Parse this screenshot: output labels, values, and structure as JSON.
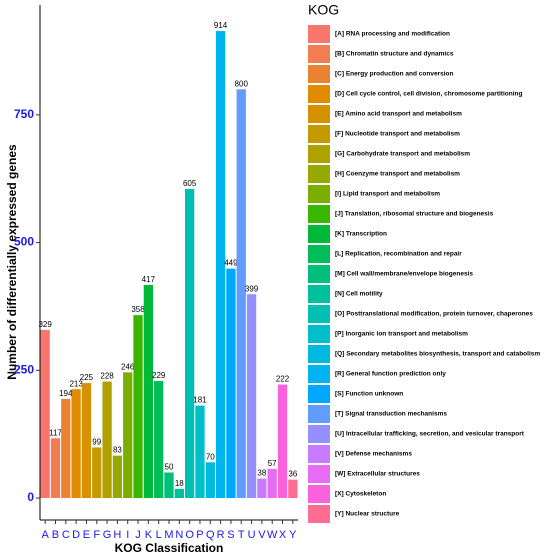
{
  "chart_data": {
    "type": "bar",
    "x_label": "KOG Classification",
    "y_label": "Number of differentially expressed genes",
    "legend_title": "KOG",
    "categories": [
      "A",
      "B",
      "C",
      "D",
      "E",
      "F",
      "G",
      "H",
      "I",
      "J",
      "K",
      "L",
      "M",
      "N",
      "O",
      "P",
      "Q",
      "R",
      "S",
      "T",
      "U",
      "V",
      "W",
      "X",
      "Y"
    ],
    "legend_labels": [
      "[A] RNA processing and modification",
      "[B] Chromatin structure and dynamics",
      "[C] Energy production and conversion",
      "[D] Cell cycle control, cell division, chromosome partitioning",
      "[E] Amino acid transport and metabolism",
      "[F] Nucleotide transport and metabolism",
      "[G] Carbohydrate transport and metabolism",
      "[H] Coenzyme transport and metabolism",
      "[I] Lipid transport and metabolism",
      "[J] Translation, ribosomal structure and biogenesis",
      "[K] Transcription",
      "[L] Replication, recombination and repair",
      "[M] Cell wall/membrane/envelope biogenesis",
      "[N] Cell motility",
      "[O] Posttranslational modification, protein turnover, chaperones",
      "[P] Inorganic ion transport and metabolism",
      "[Q] Secondary metabolites biosynthesis, transport and catabolism",
      "[R] General function prediction only",
      "[S] Function unknown",
      "[T] Signal transduction mechanisms",
      "[U] Intracellular trafficking, secretion, and vesicular transport",
      "[V] Defense mechanisms",
      "[W] Extracellular structures",
      "[X] Cytoskeleton",
      "[Y] Nuclear structure"
    ],
    "values": [
      329,
      117,
      194,
      213,
      225,
      99,
      228,
      83,
      246,
      358,
      417,
      229,
      50,
      18,
      605,
      181,
      70,
      914,
      449,
      800,
      399,
      38,
      57,
      222,
      36
    ],
    "colors": [
      "#F8766D",
      "#F27D52",
      "#EA8331",
      "#E08B00",
      "#D59100",
      "#C49A00",
      "#AFA100",
      "#96A900",
      "#7CAE00",
      "#39B600",
      "#00B938",
      "#00BC59",
      "#00BF7D",
      "#00C19C",
      "#00C0B4",
      "#00BECB",
      "#00BADE",
      "#00B4EF",
      "#00A9FF",
      "#619CFF",
      "#9590FF",
      "#C77CFF",
      "#E76BF3",
      "#FA62DB",
      "#FF6C91"
    ],
    "ylim": [
      -43,
      965
    ],
    "yticks": [
      0,
      250,
      500,
      750
    ]
  }
}
